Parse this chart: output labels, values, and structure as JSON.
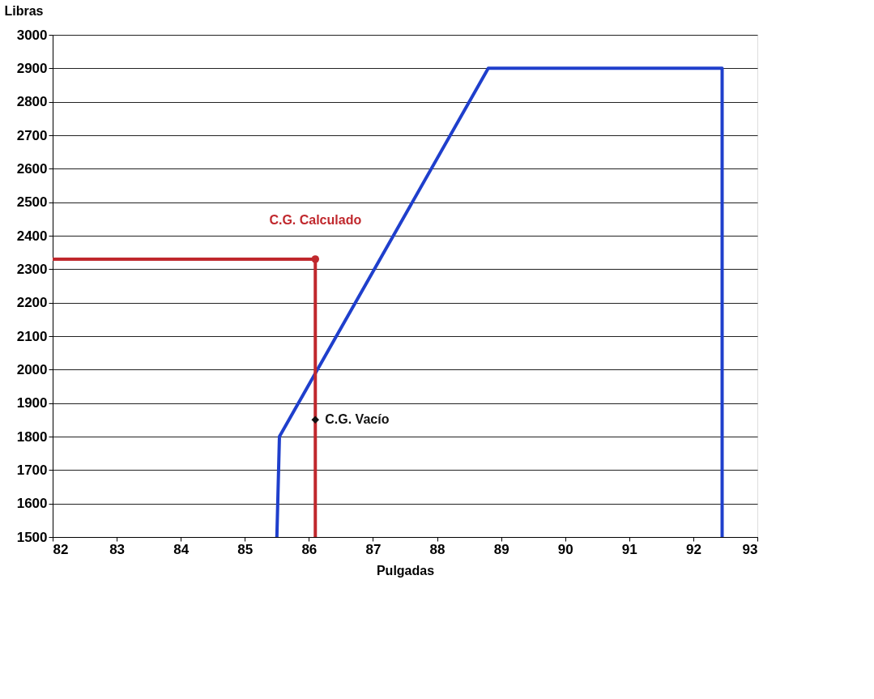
{
  "chart_data": {
    "type": "line",
    "xlabel": "Pulgadas",
    "ylabel": "Libras",
    "xlim": [
      82,
      93
    ],
    "xticks": [
      82,
      83,
      84,
      85,
      86,
      87,
      88,
      89,
      90,
      91,
      92,
      93
    ],
    "ylim": [
      1500,
      3000
    ],
    "yticks": [
      1500,
      1600,
      1700,
      1800,
      1900,
      2000,
      2100,
      2200,
      2300,
      2400,
      2500,
      2600,
      2700,
      2800,
      2900,
      3000
    ],
    "grid": "y",
    "series": [
      {
        "color": "#1f3fcc",
        "marker": "none",
        "x": [
          85.5,
          85.54,
          88.8,
          92.45,
          92.45
        ],
        "values": [
          1500,
          1800,
          2900,
          2900,
          1500
        ]
      },
      {
        "type": "line",
        "color": "#c0282d",
        "marker": "none",
        "x": [
          82,
          86.1,
          86.1
        ],
        "values": [
          2330,
          2330,
          1500
        ]
      },
      {
        "type": "scatter",
        "color": "#c0282d",
        "marker": "circle",
        "x": [
          86.1
        ],
        "values": [
          2330
        ]
      },
      {
        "type": "scatter",
        "color": "#111111",
        "marker": "diamond",
        "x": [
          86.1
        ],
        "values": [
          1850
        ]
      }
    ],
    "annotations": [
      {
        "text": "C.G. Calculado",
        "x": 86.1,
        "y": 2330
      },
      {
        "text": "C.G. Vacío",
        "x": 86.1,
        "y": 1850
      }
    ]
  }
}
